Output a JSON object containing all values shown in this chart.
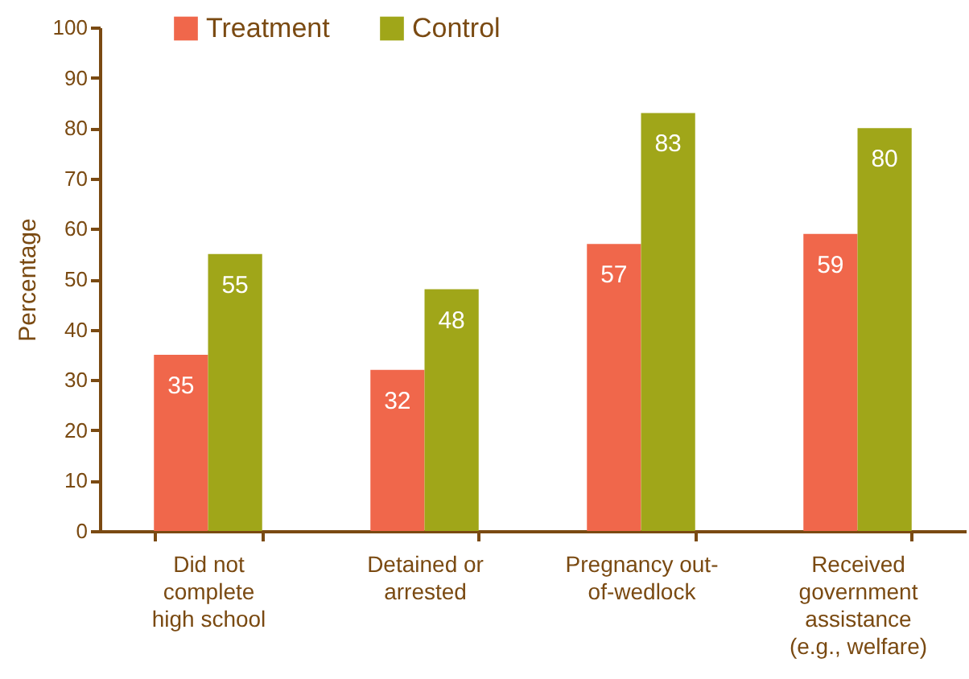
{
  "chart_data": {
    "type": "bar",
    "categories": [
      "Did not\ncomplete\nhigh school",
      "Detained or\narrested",
      "Pregnancy out-\nof-wedlock",
      "Received\ngovernment\nassistance\n(e.g., welfare)"
    ],
    "series": [
      {
        "name": "Treatment",
        "color": "#f0674b",
        "values": [
          35,
          32,
          57,
          59
        ]
      },
      {
        "name": "Control",
        "color": "#a0a619",
        "values": [
          55,
          48,
          83,
          80
        ]
      }
    ],
    "ylabel": "Percentage",
    "ylim": [
      0,
      100
    ],
    "yticks": [
      0,
      10,
      20,
      30,
      40,
      50,
      60,
      70,
      80,
      90,
      100
    ],
    "legend": "top left",
    "data_labels": true
  }
}
